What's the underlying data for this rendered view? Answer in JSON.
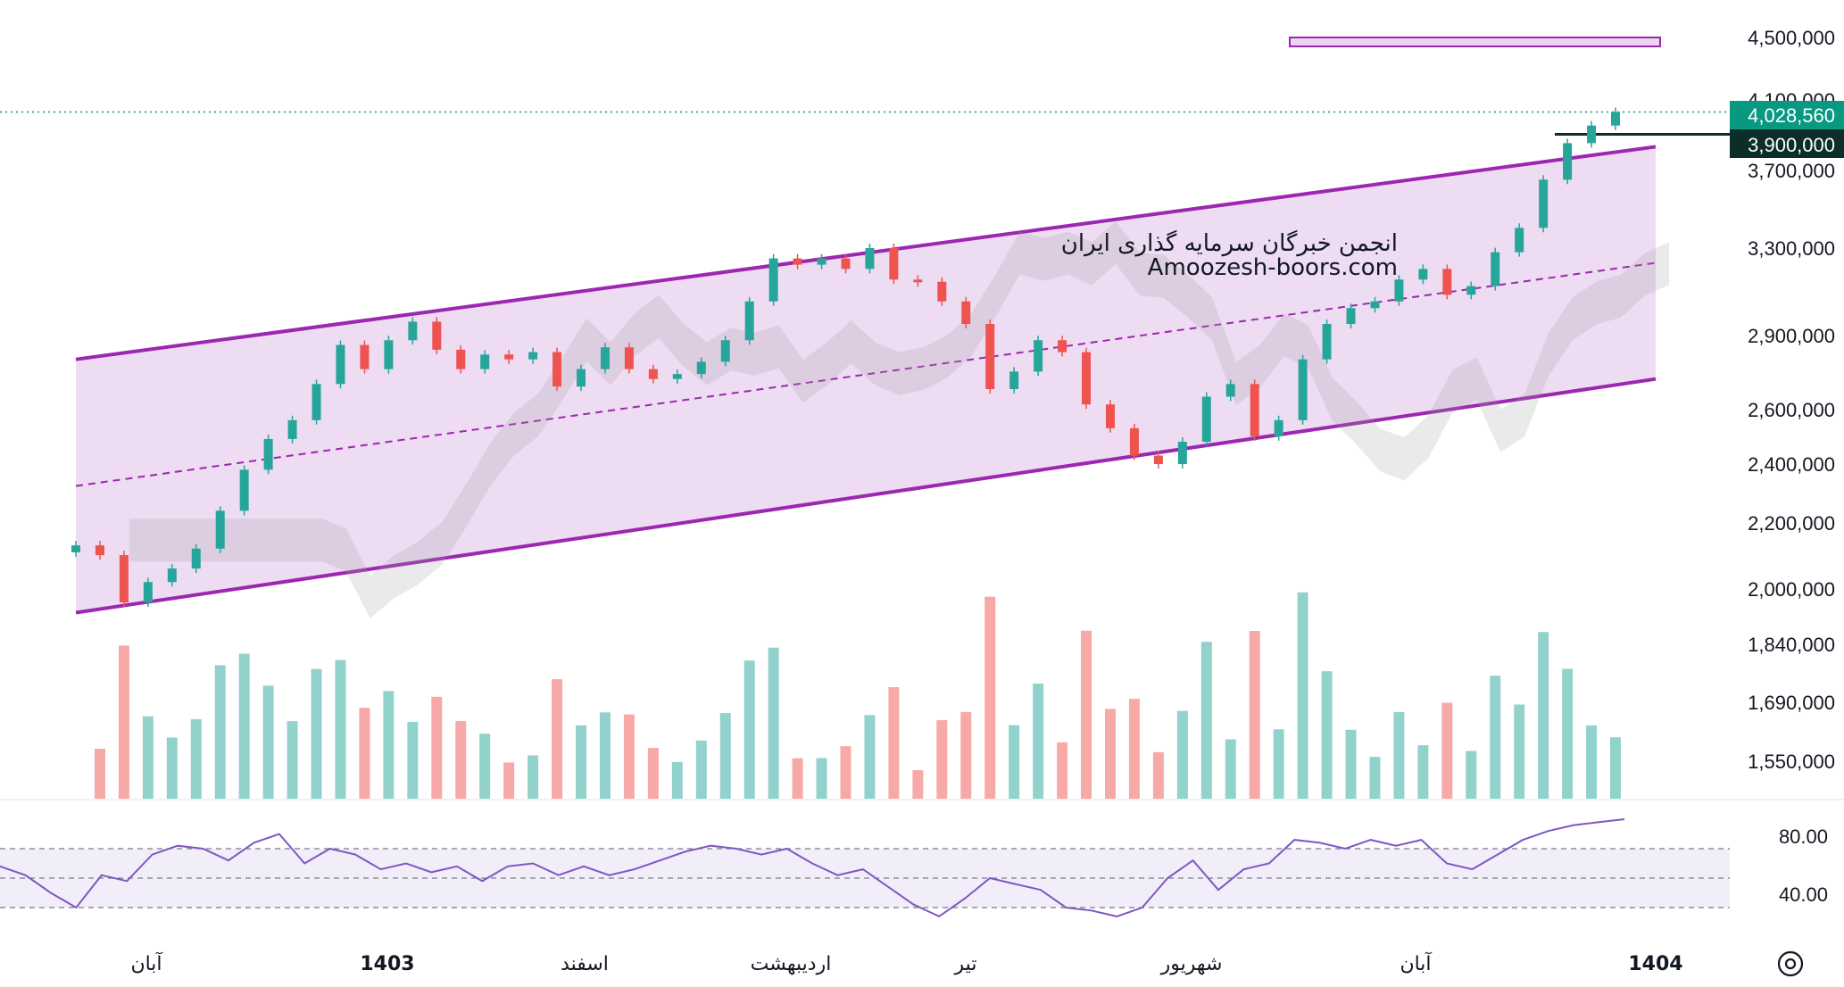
{
  "watermark": {
    "line1": "انجمن خبرگان سرمایه گذاری ایران",
    "line2": "Amoozesh-boors.com"
  },
  "price_tags": {
    "last": "4,028,560",
    "level": "3,900,000"
  },
  "colors": {
    "up": "#26a69a",
    "down": "#ef5350",
    "channel": "#9c27b0",
    "channel_fill": "#ead6f0",
    "last_tag": "#089981",
    "level_tag": "#0b2e28",
    "rsi": "#7e57c2"
  },
  "icons": {
    "settings": "settings-icon"
  },
  "chart_data": {
    "type": "candlestick",
    "title": "",
    "price_axis": {
      "labels": [
        "4,500,000",
        "4,100,000",
        "3,700,000",
        "3,300,000",
        "2,900,000",
        "2,600,000",
        "2,400,000",
        "2,200,000",
        "2,000,000",
        "1,840,000",
        "1,690,000",
        "1,550,000"
      ],
      "range": [
        1550000,
        4500000
      ],
      "scale": "log"
    },
    "time_axis": {
      "labels": [
        "آبان",
        "1403",
        "اسفند",
        "اردیبهشت",
        "تیر",
        "شهریور",
        "آبان",
        "1404"
      ],
      "bold": [
        false,
        true,
        false,
        false,
        false,
        false,
        false,
        true
      ]
    },
    "last_price": 4028560,
    "horizontal_level": 3900000,
    "channel": {
      "upper": [
        {
          "t": 0,
          "price": 2800000
        },
        {
          "t": 1,
          "price": 3830000
        }
      ],
      "lower": [
        {
          "t": 0,
          "price": 1930000
        },
        {
          "t": 1,
          "price": 2720000
        }
      ],
      "mid_dashed": true
    },
    "target_zone": {
      "price_low": 4460000,
      "price_high": 4500000
    },
    "close_series": [
      2130000,
      2100000,
      1960000,
      2020000,
      2060000,
      2120000,
      2240000,
      2380000,
      2490000,
      2560000,
      2700000,
      2860000,
      2760000,
      2880000,
      2960000,
      2840000,
      2760000,
      2820000,
      2800000,
      2830000,
      2690000,
      2760000,
      2850000,
      2760000,
      2720000,
      2740000,
      2790000,
      2880000,
      3050000,
      3250000,
      3220000,
      3250000,
      3200000,
      3300000,
      3150000,
      3140000,
      3050000,
      2950000,
      2680000,
      2750000,
      2880000,
      2830000,
      2620000,
      2530000,
      2430000,
      2400000,
      2480000,
      2650000,
      2700000,
      2500000,
      2560000,
      2800000,
      2950000,
      3020000,
      3050000,
      3150000,
      3200000,
      3080000,
      3120000,
      3280000,
      3400000,
      3650000,
      3850000,
      3950000,
      4028560
    ],
    "volume_axis": {
      "label_note": "volume bars share price axis ticks 1,840,000 – 1,550,000"
    },
    "rsi": {
      "levels": [
        80,
        40
      ],
      "labels": [
        "80.00",
        "40.00"
      ],
      "upper_band": 70,
      "lower_band": 30,
      "values": [
        58,
        52,
        40,
        30,
        52,
        48,
        66,
        72,
        70,
        62,
        74,
        80,
        60,
        70,
        66,
        56,
        60,
        54,
        58,
        48,
        58,
        60,
        52,
        58,
        52,
        56,
        62,
        68,
        72,
        70,
        66,
        70,
        60,
        52,
        56,
        44,
        32,
        24,
        36,
        50,
        46,
        42,
        30,
        28,
        24,
        30,
        50,
        62,
        42,
        56,
        60,
        76,
        74,
        70,
        76,
        72,
        76,
        60,
        56,
        66,
        76,
        82,
        86,
        88,
        90
      ]
    }
  }
}
